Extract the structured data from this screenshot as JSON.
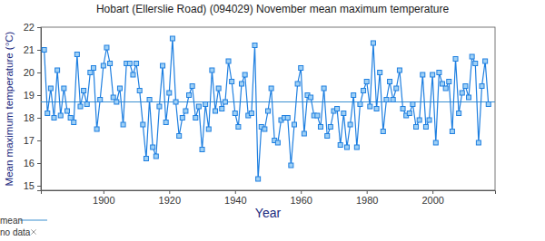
{
  "chart_data": {
    "type": "line",
    "title": "Hobart (Ellerslie Road) (094029) November mean maximum temperature",
    "x_label": "Year",
    "y_label": "Mean maximum temperature (°C)",
    "x": [
      1882,
      1883,
      1884,
      1885,
      1886,
      1887,
      1888,
      1889,
      1890,
      1891,
      1892,
      1893,
      1894,
      1895,
      1896,
      1897,
      1898,
      1899,
      1900,
      1901,
      1902,
      1903,
      1904,
      1905,
      1906,
      1907,
      1908,
      1909,
      1910,
      1911,
      1912,
      1913,
      1914,
      1915,
      1916,
      1917,
      1918,
      1919,
      1920,
      1921,
      1922,
      1923,
      1924,
      1925,
      1926,
      1927,
      1928,
      1929,
      1930,
      1931,
      1932,
      1933,
      1934,
      1935,
      1936,
      1937,
      1938,
      1939,
      1940,
      1941,
      1942,
      1943,
      1944,
      1945,
      1946,
      1947,
      1948,
      1949,
      1950,
      1951,
      1952,
      1953,
      1954,
      1955,
      1956,
      1957,
      1958,
      1959,
      1960,
      1961,
      1962,
      1963,
      1964,
      1965,
      1966,
      1967,
      1968,
      1969,
      1970,
      1971,
      1972,
      1973,
      1974,
      1975,
      1976,
      1977,
      1978,
      1979,
      1980,
      1981,
      1982,
      1983,
      1984,
      1985,
      1986,
      1987,
      1988,
      1989,
      1990,
      1991,
      1992,
      1993,
      1994,
      1995,
      1996,
      1997,
      1998,
      1999,
      2000,
      2001,
      2002,
      2003,
      2004,
      2005,
      2006,
      2007,
      2008,
      2009,
      2010,
      2011,
      2012,
      2013,
      2014,
      2015,
      2016,
      2017
    ],
    "series": [
      {
        "color": "#1e7fe0",
        "marker": "square",
        "values": [
          21.0,
          18.2,
          19.3,
          18.0,
          20.1,
          18.1,
          19.3,
          18.3,
          18.0,
          17.8,
          20.8,
          18.5,
          19.2,
          18.6,
          20.0,
          20.2,
          17.5,
          18.8,
          20.3,
          21.1,
          20.4,
          18.9,
          18.7,
          19.3,
          17.7,
          20.4,
          20.4,
          19.9,
          20.4,
          19.2,
          17.7,
          16.2,
          18.8,
          16.7,
          16.3,
          18.5,
          20.3,
          17.8,
          19.1,
          21.5,
          18.7,
          17.2,
          18.0,
          18.3,
          19.0,
          19.4,
          18.0,
          18.5,
          16.6,
          18.6,
          17.5,
          20.1,
          18.3,
          19.3,
          18.4,
          18.7,
          20.5,
          19.6,
          18.2,
          17.6,
          19.5,
          19.9,
          18.1,
          18.2,
          21.2,
          15.3,
          17.6,
          17.5,
          18.3,
          19.3,
          17.0,
          16.9,
          17.9,
          18.0,
          18.0,
          15.9,
          17.7,
          19.5,
          20.2,
          17.3,
          19.0,
          18.9,
          18.1,
          18.1,
          17.6,
          19.3,
          17.2,
          17.6,
          18.3,
          18.4,
          16.8,
          18.2,
          16.7,
          17.7,
          19.0,
          16.7,
          18.6,
          19.2,
          19.6,
          18.5,
          21.3,
          18.4,
          20.0,
          17.4,
          18.8,
          19.6,
          18.8,
          19.3,
          20.1,
          18.4,
          18.1,
          18.2,
          18.6,
          17.6,
          17.9,
          19.9,
          17.6,
          17.9,
          19.9,
          16.9,
          20.0,
          19.5,
          19.3,
          19.6,
          17.4,
          20.6,
          18.2,
          19.1,
          19.4,
          18.9,
          20.7,
          20.4,
          16.9,
          19.4,
          20.5,
          18.6
        ]
      }
    ],
    "mean": {
      "name": "mean",
      "value": 18.7,
      "color": "#3a8fd0"
    },
    "no_data": {
      "name": "no data",
      "marker": "x"
    },
    "xlim": [
      1881,
      2019
    ],
    "xticks": [
      1900,
      1920,
      1940,
      1960,
      1980,
      2000
    ],
    "ylim": [
      14.8,
      22
    ],
    "yticks": [
      15,
      16,
      17,
      18,
      19,
      20,
      21,
      22
    ],
    "grid": false
  }
}
